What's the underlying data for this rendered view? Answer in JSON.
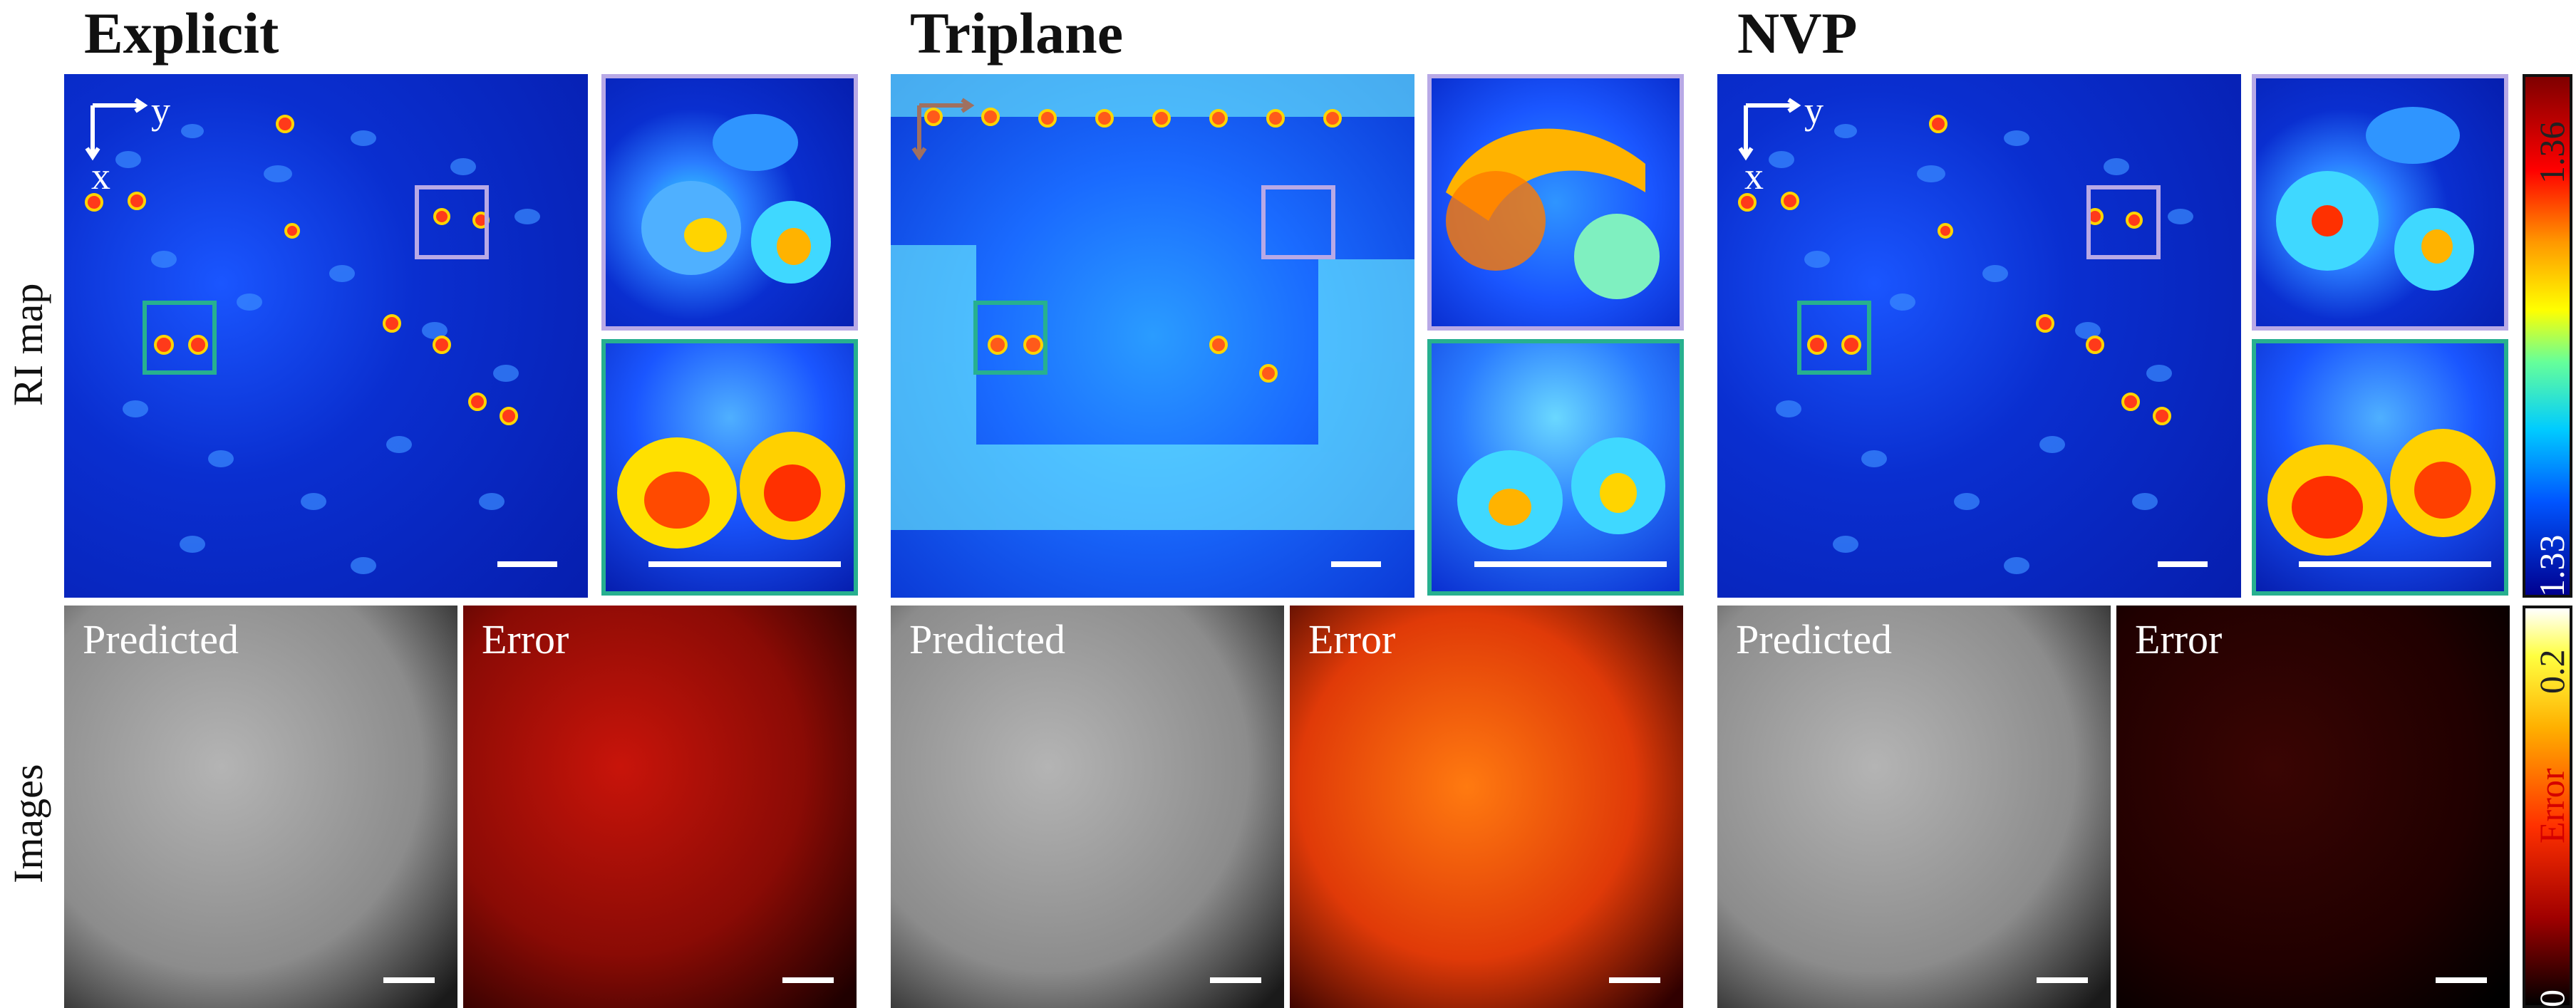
{
  "columns": [
    {
      "title": "Explicit"
    },
    {
      "title": "Triplane"
    },
    {
      "title": "NVP"
    }
  ],
  "row_labels": {
    "ri": "RI map",
    "images": "Images"
  },
  "axis_labels": {
    "y": "y",
    "x": "x"
  },
  "panel_labels": {
    "predicted": "Predicted",
    "error": "Error"
  },
  "colorbar_ri": {
    "max": "1.36",
    "min": "1.33",
    "colormap": "jet"
  },
  "colorbar_error": {
    "max": "0.2",
    "label": "Error",
    "min": "0",
    "colormap": "hot"
  },
  "colors": {
    "purple_box": "#b8a9e6",
    "teal_box": "#27b08f"
  }
}
